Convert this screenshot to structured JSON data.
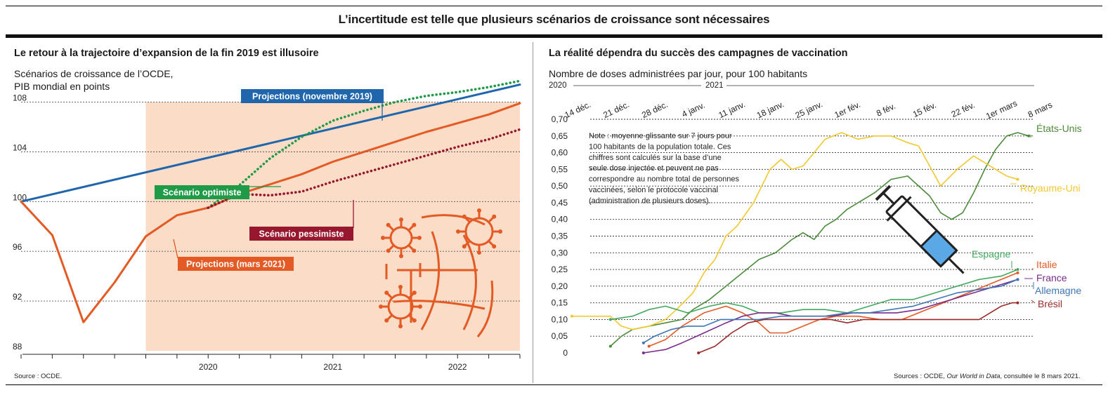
{
  "header": {
    "title": "L’incertitude est telle que plusieurs scénarios de croissance sont nécessaires"
  },
  "colors": {
    "blue": "#1f66ad",
    "orange": "#e35a24",
    "green": "#1f9a47",
    "maroon": "#97172f",
    "shade": "#fbdcc6",
    "usa": "#4c8b3b",
    "uk": "#f2c82f",
    "spain": "#41a85f",
    "italy": "#e35a24",
    "france": "#7b2c8b",
    "germany": "#3f76b4",
    "brazil": "#9b2a2a"
  },
  "icons": [
    "virus-icon",
    "globe-icon",
    "syringe-icon"
  ],
  "left": {
    "title": "Le retour à la trajectoire d’expansion de la fin 2019 est illusoire",
    "subtitle_line1": "Scénarios de croissance de l’OCDE,",
    "subtitle_line2": "PIB mondial en points",
    "source": "Source : OCDE.",
    "chart_data": {
      "type": "line",
      "ylim": [
        88,
        110
      ],
      "xlim": [
        2019.0,
        2023.0
      ],
      "yticks": [
        88,
        92,
        96,
        100,
        104,
        108
      ],
      "xticks": [
        {
          "label": "2020",
          "x": 2020.5
        },
        {
          "label": "2021",
          "x": 2021.5
        },
        {
          "label": "2022",
          "x": 2022.5
        }
      ],
      "projection_start": 2020.0,
      "series": [
        {
          "name": "Projections (novembre 2019)",
          "style": "solid",
          "color": "#1f66ad",
          "points": [
            [
              2019.0,
              100.0
            ],
            [
              2023.0,
              109.4
            ]
          ]
        },
        {
          "name": "Projections (mars 2021)",
          "style": "solid",
          "color": "#e35a24",
          "points": [
            [
              2019.0,
              100.0
            ],
            [
              2019.25,
              97.3
            ],
            [
              2019.5,
              90.3
            ],
            [
              2019.75,
              93.5
            ],
            [
              2020.0,
              97.2
            ],
            [
              2020.25,
              98.9
            ],
            [
              2020.5,
              99.5
            ],
            [
              2020.75,
              100.6
            ],
            [
              2021.0,
              101.4
            ],
            [
              2021.25,
              102.2
            ],
            [
              2021.5,
              103.2
            ],
            [
              2021.75,
              104.0
            ],
            [
              2022.0,
              104.8
            ],
            [
              2022.25,
              105.6
            ],
            [
              2022.5,
              106.3
            ],
            [
              2022.75,
              107.0
            ],
            [
              2023.0,
              107.9
            ]
          ]
        },
        {
          "name": "Scénario optimiste",
          "style": "dotted",
          "color": "#1f9a47",
          "points": [
            [
              2020.5,
              99.5
            ],
            [
              2020.75,
              101.3
            ],
            [
              2021.0,
              103.5
            ],
            [
              2021.25,
              105.2
            ],
            [
              2021.5,
              106.5
            ],
            [
              2021.75,
              107.3
            ],
            [
              2022.0,
              108.0
            ],
            [
              2022.25,
              108.5
            ],
            [
              2022.5,
              108.8
            ],
            [
              2022.75,
              109.2
            ],
            [
              2023.0,
              109.7
            ]
          ]
        },
        {
          "name": "Scénario pessimiste",
          "style": "dotted",
          "color": "#97172f",
          "points": [
            [
              2020.5,
              99.5
            ],
            [
              2020.75,
              100.6
            ],
            [
              2021.0,
              100.5
            ],
            [
              2021.25,
              100.8
            ],
            [
              2021.5,
              101.6
            ],
            [
              2021.75,
              102.3
            ],
            [
              2022.0,
              103.0
            ],
            [
              2022.25,
              103.7
            ],
            [
              2022.5,
              104.4
            ],
            [
              2022.75,
              105.0
            ],
            [
              2023.0,
              105.8
            ]
          ]
        }
      ]
    }
  },
  "right": {
    "title": "La réalité dépendra du succès des campagnes de vaccination",
    "subtitle": "Nombre de doses administrées par jour, pour 100 habitants",
    "year_labels": [
      "2020",
      "2021"
    ],
    "note": "Note : moyenne glissante sur 7 jours pour 100 habitants de la population totale. Ces chiffres sont calculés sur la base d’une seule dose injectée et peuvent ne pas correspondre au nombre total de personnes vaccinées, selon le protocole vaccinal (administration de plusieurs doses).",
    "source_prefix": "Sources : OCDE, ",
    "source_italic": "Our World in Data",
    "source_suffix": ", consultée le 8 mars 2021.",
    "chart_data": {
      "type": "line",
      "ylim": [
        0,
        0.7
      ],
      "yticks": [
        "0",
        "0,05",
        "0,10",
        "0,15",
        "0,20",
        "0,25",
        "0,30",
        "0,35",
        "0,40",
        "0,45",
        "0,50",
        "0,55",
        "0,60",
        "0,65",
        "0,70"
      ],
      "x_start_day": 0,
      "x_end_day": 84,
      "dates": [
        "14 déc.",
        "21 déc.",
        "28 déc.",
        "4 janv.",
        "11 janv.",
        "18 janv.",
        "25 janv.",
        "1er fév.",
        "8 fév.",
        "15 fév.",
        "22 fév.",
        "1er mars",
        "8 mars"
      ],
      "series": [
        {
          "name": "États-Unis",
          "color": "#4c8b3b",
          "points": [
            [
              7,
              0.02
            ],
            [
              9,
              0.05
            ],
            [
              11,
              0.07
            ],
            [
              14,
              0.08
            ],
            [
              17,
              0.09
            ],
            [
              20,
              0.1
            ],
            [
              22,
              0.13
            ],
            [
              25,
              0.16
            ],
            [
              28,
              0.2
            ],
            [
              31,
              0.24
            ],
            [
              34,
              0.28
            ],
            [
              37,
              0.3
            ],
            [
              40,
              0.34
            ],
            [
              42,
              0.36
            ],
            [
              44,
              0.34
            ],
            [
              46,
              0.38
            ],
            [
              48,
              0.4
            ],
            [
              50,
              0.43
            ],
            [
              52,
              0.45
            ],
            [
              55,
              0.48
            ],
            [
              58,
              0.52
            ],
            [
              61,
              0.53
            ],
            [
              63,
              0.5
            ],
            [
              65,
              0.47
            ],
            [
              67,
              0.42
            ],
            [
              69,
              0.4
            ],
            [
              71,
              0.42
            ],
            [
              73,
              0.48
            ],
            [
              75,
              0.55
            ],
            [
              77,
              0.61
            ],
            [
              79,
              0.65
            ],
            [
              81,
              0.66
            ],
            [
              83,
              0.65
            ]
          ]
        },
        {
          "name": "Royaume-Uni",
          "color": "#f2c82f",
          "points": [
            [
              0,
              0.11
            ],
            [
              7,
              0.11
            ],
            [
              9,
              0.08
            ],
            [
              11,
              0.07
            ],
            [
              14,
              0.08
            ],
            [
              17,
              0.1
            ],
            [
              19,
              0.13
            ],
            [
              22,
              0.18
            ],
            [
              24,
              0.24
            ],
            [
              26,
              0.28
            ],
            [
              28,
              0.35
            ],
            [
              30,
              0.38
            ],
            [
              33,
              0.45
            ],
            [
              36,
              0.55
            ],
            [
              38,
              0.58
            ],
            [
              40,
              0.55
            ],
            [
              42,
              0.56
            ],
            [
              44,
              0.6
            ],
            [
              46,
              0.64
            ],
            [
              49,
              0.66
            ],
            [
              52,
              0.64
            ],
            [
              55,
              0.65
            ],
            [
              58,
              0.65
            ],
            [
              61,
              0.63
            ],
            [
              63,
              0.62
            ],
            [
              65,
              0.56
            ],
            [
              67,
              0.5
            ],
            [
              70,
              0.55
            ],
            [
              73,
              0.59
            ],
            [
              75,
              0.57
            ],
            [
              77,
              0.55
            ],
            [
              79,
              0.53
            ],
            [
              81,
              0.52
            ]
          ]
        },
        {
          "name": "Espagne",
          "color": "#41a85f",
          "points": [
            [
              7,
              0.1
            ],
            [
              11,
              0.11
            ],
            [
              14,
              0.13
            ],
            [
              17,
              0.14
            ],
            [
              21,
              0.12
            ],
            [
              25,
              0.14
            ],
            [
              28,
              0.15
            ],
            [
              31,
              0.14
            ],
            [
              34,
              0.12
            ],
            [
              38,
              0.12
            ],
            [
              42,
              0.13
            ],
            [
              46,
              0.13
            ],
            [
              50,
              0.12
            ],
            [
              54,
              0.14
            ],
            [
              58,
              0.16
            ],
            [
              62,
              0.16
            ],
            [
              66,
              0.18
            ],
            [
              70,
              0.2
            ],
            [
              74,
              0.22
            ],
            [
              78,
              0.23
            ],
            [
              81,
              0.25
            ]
          ]
        },
        {
          "name": "Italie",
          "color": "#e35a24",
          "points": [
            [
              14,
              0.02
            ],
            [
              17,
              0.04
            ],
            [
              20,
              0.08
            ],
            [
              24,
              0.12
            ],
            [
              28,
              0.14
            ],
            [
              31,
              0.12
            ],
            [
              34,
              0.09
            ],
            [
              36,
              0.06
            ],
            [
              39,
              0.06
            ],
            [
              42,
              0.08
            ],
            [
              45,
              0.1
            ],
            [
              48,
              0.11
            ],
            [
              52,
              0.11
            ],
            [
              56,
              0.1
            ],
            [
              60,
              0.1
            ],
            [
              63,
              0.12
            ],
            [
              66,
              0.14
            ],
            [
              69,
              0.16
            ],
            [
              72,
              0.18
            ],
            [
              75,
              0.2
            ],
            [
              78,
              0.22
            ],
            [
              81,
              0.24
            ]
          ]
        },
        {
          "name": "France",
          "color": "#7b2c8b",
          "points": [
            [
              13,
              0
            ],
            [
              17,
              0.01
            ],
            [
              20,
              0.03
            ],
            [
              24,
              0.06
            ],
            [
              28,
              0.09
            ],
            [
              31,
              0.11
            ],
            [
              34,
              0.12
            ],
            [
              37,
              0.12
            ],
            [
              40,
              0.11
            ],
            [
              43,
              0.11
            ],
            [
              47,
              0.11
            ],
            [
              51,
              0.12
            ],
            [
              55,
              0.12
            ],
            [
              59,
              0.12
            ],
            [
              63,
              0.13
            ],
            [
              67,
              0.15
            ],
            [
              71,
              0.17
            ],
            [
              75,
              0.19
            ],
            [
              79,
              0.21
            ],
            [
              81,
              0.22
            ]
          ]
        },
        {
          "name": "Allemagne",
          "color": "#3f76b4",
          "points": [
            [
              13,
              0.03
            ],
            [
              15,
              0.05
            ],
            [
              18,
              0.07
            ],
            [
              21,
              0.08
            ],
            [
              24,
              0.08
            ],
            [
              27,
              0.1
            ],
            [
              30,
              0.1
            ],
            [
              34,
              0.1
            ],
            [
              38,
              0.11
            ],
            [
              42,
              0.11
            ],
            [
              46,
              0.11
            ],
            [
              50,
              0.12
            ],
            [
              54,
              0.12
            ],
            [
              58,
              0.13
            ],
            [
              62,
              0.14
            ],
            [
              66,
              0.16
            ],
            [
              70,
              0.18
            ],
            [
              74,
              0.19
            ],
            [
              78,
              0.2
            ],
            [
              81,
              0.22
            ]
          ]
        },
        {
          "name": "Brésil",
          "color": "#9b2a2a",
          "points": [
            [
              23,
              0
            ],
            [
              26,
              0.02
            ],
            [
              29,
              0.06
            ],
            [
              32,
              0.09
            ],
            [
              35,
              0.1
            ],
            [
              38,
              0.1
            ],
            [
              41,
              0.1
            ],
            [
              44,
              0.1
            ],
            [
              47,
              0.1
            ],
            [
              50,
              0.09
            ],
            [
              53,
              0.1
            ],
            [
              56,
              0.1
            ],
            [
              59,
              0.1
            ],
            [
              62,
              0.1
            ],
            [
              65,
              0.1
            ],
            [
              68,
              0.1
            ],
            [
              71,
              0.1
            ],
            [
              74,
              0.1
            ],
            [
              76,
              0.12
            ],
            [
              78,
              0.14
            ],
            [
              80,
              0.15
            ],
            [
              81,
              0.15
            ]
          ]
        }
      ]
    }
  }
}
